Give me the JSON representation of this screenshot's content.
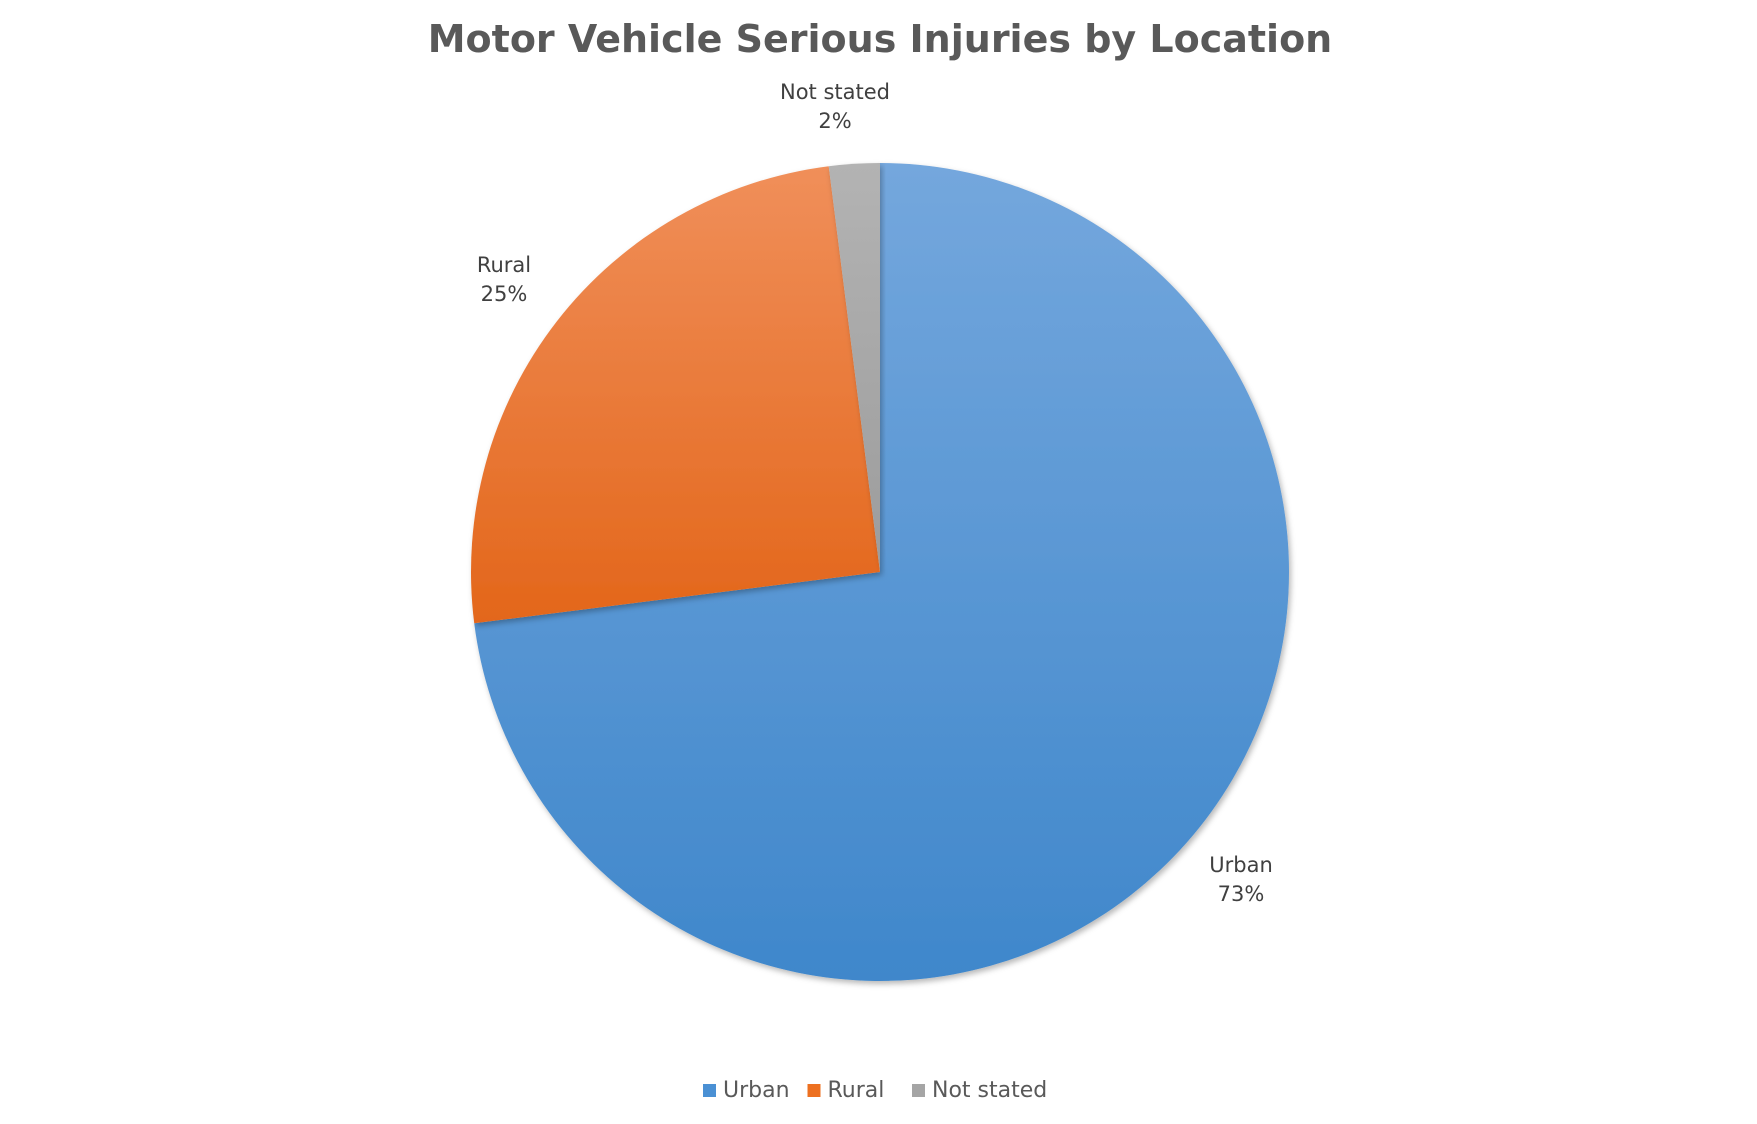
{
  "chart_data": {
    "type": "pie",
    "title": "Motor Vehicle Serious Injuries by Location",
    "categories": [
      "Urban",
      "Rural",
      "Not stated"
    ],
    "values": [
      73,
      25,
      2
    ],
    "value_labels": [
      "73%",
      "25%",
      "2%"
    ],
    "colors": [
      "#4a90d4",
      "#ed7020",
      "#a5a5a5"
    ],
    "legend_position": "bottom",
    "data_labels_show": [
      "category name",
      "percentage"
    ]
  }
}
